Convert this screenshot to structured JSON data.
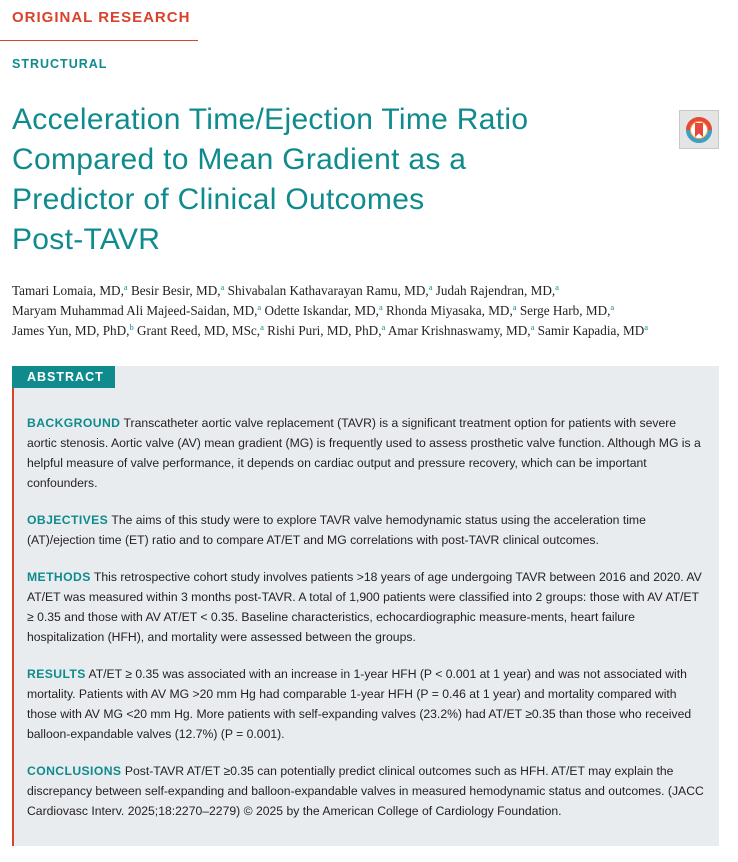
{
  "header": {
    "article_type": "ORIGINAL RESEARCH",
    "section": "STRUCTURAL"
  },
  "title": {
    "line1": "Acceleration Time/Ejection Time Ratio",
    "line2": "Compared to Mean Gradient as a",
    "line3": "Predictor of Clinical Outcomes",
    "line4": "Post-TAVR"
  },
  "crossmark_icon": "crossmark-update-icon",
  "authors": {
    "line1": [
      {
        "name": "Tamari Lomaia, MD,",
        "aff": "a"
      },
      {
        "name": " Besir Besir, MD,",
        "aff": "a"
      },
      {
        "name": " Shivabalan Kathavarayan Ramu, MD,",
        "aff": "a"
      },
      {
        "name": " Judah Rajendran, MD,",
        "aff": "a"
      }
    ],
    "line2": [
      {
        "name": "Maryam Muhammad Ali Majeed-Saidan, MD,",
        "aff": "a"
      },
      {
        "name": " Odette Iskandar, MD,",
        "aff": "a"
      },
      {
        "name": " Rhonda Miyasaka, MD,",
        "aff": "a"
      },
      {
        "name": " Serge Harb, MD,",
        "aff": "a"
      }
    ],
    "line3": [
      {
        "name": "James Yun, MD, PhD,",
        "aff": "b"
      },
      {
        "name": " Grant Reed, MD, MSc,",
        "aff": "a"
      },
      {
        "name": " Rishi Puri, MD, PhD,",
        "aff": "a"
      },
      {
        "name": " Amar Krishnaswamy, MD,",
        "aff": "a"
      },
      {
        "name": " Samir Kapadia, MD",
        "aff": "a"
      }
    ]
  },
  "abstract": {
    "label": "ABSTRACT",
    "background": {
      "heading": "BACKGROUND",
      "text": "Transcatheter aortic valve replacement (TAVR) is a significant treatment option for patients with severe aortic stenosis. Aortic valve (AV) mean gradient (MG) is frequently used to assess prosthetic valve function. Although MG is a helpful measure of valve performance, it depends on cardiac output and pressure recovery, which can be important confounders."
    },
    "objectives": {
      "heading": "OBJECTIVES",
      "text": "The aims of this study were to explore TAVR valve hemodynamic status using the acceleration time (AT)/ejection time (ET) ratio and to compare AT/ET and MG correlations with post-TAVR clinical outcomes."
    },
    "methods": {
      "heading": "METHODS",
      "text": "This retrospective cohort study involves patients >18 years of age undergoing TAVR between 2016 and 2020. AV AT/ET was measured within 3 months post-TAVR. A total of 1,900 patients were classified into 2 groups: those with AV AT/ET ≥ 0.35 and those with AV AT/ET < 0.35. Baseline characteristics, echocardiographic measure-ments, heart failure hospitalization (HFH), and mortality were assessed between the groups."
    },
    "results": {
      "heading": "RESULTS",
      "text": "AT/ET ≥ 0.35 was associated with an increase in 1-year HFH (P < 0.001 at 1 year) and was not associated with mortality. Patients with AV MG >20 mm Hg had comparable 1-year HFH (P = 0.46 at 1 year) and mortality compared with those with AV MG <20 mm Hg. More patients with self-expanding valves (23.2%) had AT/ET ≥0.35 than those who received balloon-expandable valves (12.7%) (P = 0.001)."
    },
    "conclusions": {
      "heading": "CONCLUSIONS",
      "text": "Post-TAVR AT/ET ≥0.35 can potentially predict clinical outcomes such as HFH. AT/ET may explain the discrepancy between self-expanding and balloon-expandable valves in measured hemodynamic status and outcomes. (JACC Cardiovasc Interv. 2025;18:2270–2279) © 2025 by the American College of Cardiology Foundation."
    }
  },
  "colors": {
    "brand_red": "#d9422b",
    "brand_teal": "#0f8b8d",
    "abstract_bg": "#e9ecee"
  }
}
